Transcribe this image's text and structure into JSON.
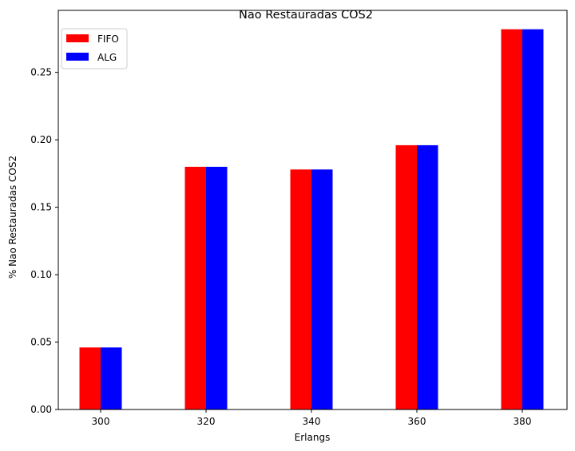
{
  "chart_data": {
    "type": "bar",
    "title": "Nao Restauradas COS2",
    "xlabel": "Erlangs",
    "ylabel": "% Nao Restauradas COS2",
    "categories": [
      "300",
      "320",
      "340",
      "360",
      "380"
    ],
    "series": [
      {
        "name": "FIFO",
        "color": "#ff0000",
        "values": [
          0.046,
          0.18,
          0.178,
          0.196,
          0.282
        ]
      },
      {
        "name": "ALG",
        "color": "#0000ff",
        "values": [
          0.046,
          0.18,
          0.178,
          0.196,
          0.282
        ]
      }
    ],
    "ylim": [
      0,
      0.296
    ],
    "yticks": [
      0.0,
      0.05,
      0.1,
      0.15,
      0.2,
      0.25
    ],
    "ytick_labels": [
      "0.00",
      "0.05",
      "0.10",
      "0.15",
      "0.20",
      "0.25"
    ],
    "grid": false,
    "legend_position": "top-left"
  }
}
